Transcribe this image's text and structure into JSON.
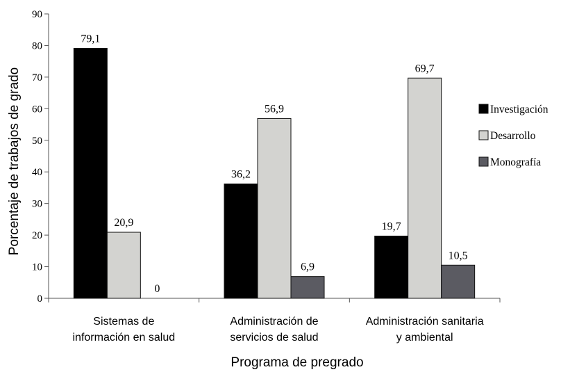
{
  "chart_data": {
    "type": "bar",
    "categories": [
      [
        "Sistemas de",
        "información en salud"
      ],
      [
        "Administración de",
        "servicios de salud"
      ],
      [
        "Administración sanitaria",
        "y ambiental"
      ]
    ],
    "series": [
      {
        "name": "Investigación",
        "color": "#000000",
        "values": [
          79.1,
          36.2,
          19.7
        ],
        "labels": [
          "79,1",
          "36,2",
          "19,7"
        ]
      },
      {
        "name": "Desarrollo",
        "color": "#d3d3d0",
        "values": [
          20.9,
          56.9,
          69.7
        ],
        "labels": [
          "20,9",
          "56,9",
          "69,7"
        ]
      },
      {
        "name": "Monografía",
        "color": "#5b5b62",
        "values": [
          0,
          6.9,
          10.5
        ],
        "labels": [
          "0",
          "6,9",
          "10,5"
        ]
      }
    ],
    "xlabel": "Programa de pregrado",
    "ylabel": "Porcentaje de trabajos de grado",
    "ylim": [
      0,
      90
    ],
    "yticks": [
      0,
      10,
      20,
      30,
      40,
      50,
      60,
      70,
      80,
      90
    ],
    "grid": false,
    "legend_position": "right"
  }
}
